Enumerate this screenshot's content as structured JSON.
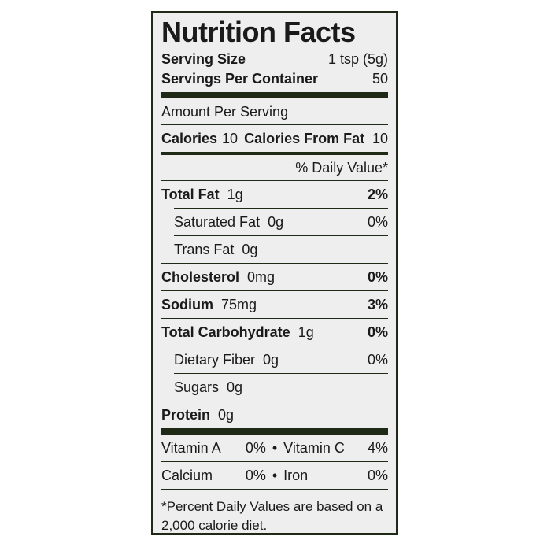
{
  "title": "Nutrition Facts",
  "serving_size": {
    "label": "Serving Size",
    "value": "1 tsp (5g)"
  },
  "servings_per_container": {
    "label": "Servings Per Container",
    "value": "50"
  },
  "amount_per_serving": "Amount Per Serving",
  "calories": {
    "label": "Calories",
    "value": "10"
  },
  "calories_from_fat": {
    "label": "Calories From Fat",
    "value": "10"
  },
  "daily_value_header": "% Daily Value*",
  "nutrients": [
    {
      "name": "Total Fat",
      "amount": "1g",
      "dv": "2%",
      "main": true
    },
    {
      "name": "Saturated Fat",
      "amount": "0g",
      "dv": "0%",
      "main": false
    },
    {
      "name": "Trans Fat",
      "amount": "0g",
      "main": false
    },
    {
      "name": "Cholesterol",
      "amount": "0mg",
      "dv": "0%",
      "main": true
    },
    {
      "name": "Sodium",
      "amount": "75mg",
      "dv": "3%",
      "main": true
    },
    {
      "name": "Total Carbohydrate",
      "amount": "1g",
      "dv": "0%",
      "main": true
    },
    {
      "name": "Dietary Fiber",
      "amount": "0g",
      "dv": "0%",
      "main": false
    },
    {
      "name": "Sugars",
      "amount": "0g",
      "main": false
    },
    {
      "name": "Protein",
      "amount": "0g",
      "main": true
    }
  ],
  "vitamins": [
    [
      {
        "name": "Vitamin A",
        "dv": "0%"
      },
      {
        "name": "Vitamin C",
        "dv": "4%"
      }
    ],
    [
      {
        "name": "Calcium",
        "dv": "0%"
      },
      {
        "name": "Iron",
        "dv": "0%"
      }
    ]
  ],
  "footnote": "*Percent Daily Values are based on a 2,000 calorie diet."
}
